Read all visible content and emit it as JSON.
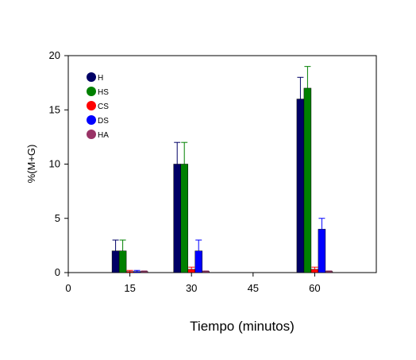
{
  "chart_data": {
    "type": "bar",
    "xlabel": "Tiempo (minutos)",
    "ylabel": "%(M+G)",
    "ylim": [
      0,
      20
    ],
    "yticks": [
      0,
      5,
      10,
      15,
      20
    ],
    "xlim": [
      0,
      75
    ],
    "xticks": [
      0,
      15,
      30,
      45,
      60
    ],
    "categories": [
      15,
      30,
      60
    ],
    "series": [
      {
        "name": "H",
        "color": "#000066",
        "values": [
          2,
          10,
          16
        ],
        "errors": [
          1,
          2,
          2
        ]
      },
      {
        "name": "HS",
        "color": "#008000",
        "values": [
          2,
          10,
          17
        ],
        "errors": [
          1,
          2,
          2
        ]
      },
      {
        "name": "CS",
        "color": "#ff0000",
        "values": [
          0.1,
          0.3,
          0.3
        ],
        "errors": [
          0.1,
          0.2,
          0.2
        ]
      },
      {
        "name": "DS",
        "color": "#0000ff",
        "values": [
          0.1,
          2,
          4
        ],
        "errors": [
          0.1,
          1,
          1
        ]
      },
      {
        "name": "HA",
        "color": "#993366",
        "values": [
          0.1,
          0.1,
          0.1
        ],
        "errors": [
          0.05,
          0.05,
          0.05
        ]
      }
    ],
    "legend_position": "top-left",
    "grid": false
  }
}
